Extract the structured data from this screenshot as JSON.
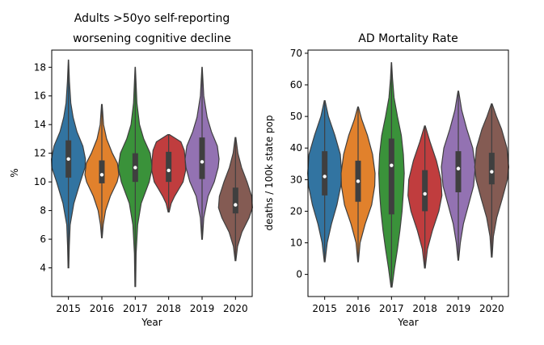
{
  "chart_data": [
    {
      "type": "violin",
      "title": "Adults >50yo self-reporting\nworsening cognitive decline",
      "xlabel": "Year",
      "ylabel": "%",
      "ylim": [
        2.0,
        19.2
      ],
      "yticks": [
        4,
        6,
        8,
        10,
        12,
        14,
        16,
        18
      ],
      "categories": [
        "2015",
        "2016",
        "2017",
        "2018",
        "2019",
        "2020"
      ],
      "colors": [
        "#3274a1",
        "#e1812c",
        "#3a923a",
        "#c03d3e",
        "#9372b2",
        "#845b53"
      ],
      "series": [
        {
          "category": "2015",
          "min": 4.0,
          "max": 18.5,
          "median": 11.6,
          "q1": 10.3,
          "q3": 12.9,
          "profile": [
            [
              4.0,
              0.02
            ],
            [
              5.5,
              0.05
            ],
            [
              7.0,
              0.1
            ],
            [
              8.5,
              0.32
            ],
            [
              10.0,
              0.7
            ],
            [
              11.0,
              0.98
            ],
            [
              11.6,
              1.0
            ],
            [
              12.5,
              0.85
            ],
            [
              13.5,
              0.5
            ],
            [
              14.5,
              0.28
            ],
            [
              15.5,
              0.14
            ],
            [
              17.0,
              0.06
            ],
            [
              18.5,
              0.01
            ]
          ]
        },
        {
          "category": "2016",
          "min": 6.1,
          "max": 15.4,
          "median": 10.5,
          "q1": 9.9,
          "q3": 11.5,
          "profile": [
            [
              6.1,
              0.02
            ],
            [
              7.0,
              0.08
            ],
            [
              8.0,
              0.22
            ],
            [
              9.0,
              0.5
            ],
            [
              10.0,
              0.9
            ],
            [
              10.5,
              1.0
            ],
            [
              11.3,
              0.92
            ],
            [
              12.0,
              0.62
            ],
            [
              13.0,
              0.28
            ],
            [
              14.0,
              0.1
            ],
            [
              15.4,
              0.02
            ]
          ]
        },
        {
          "category": "2017",
          "min": 2.7,
          "max": 18.0,
          "median": 11.0,
          "q1": 10.0,
          "q3": 12.0,
          "profile": [
            [
              2.7,
              0.02
            ],
            [
              5.0,
              0.05
            ],
            [
              7.0,
              0.14
            ],
            [
              8.5,
              0.35
            ],
            [
              10.0,
              0.82
            ],
            [
              11.0,
              1.0
            ],
            [
              12.0,
              0.88
            ],
            [
              13.0,
              0.5
            ],
            [
              14.0,
              0.25
            ],
            [
              15.5,
              0.1
            ],
            [
              18.0,
              0.01
            ]
          ]
        },
        {
          "category": "2018",
          "min": 7.9,
          "max": 13.3,
          "median": 10.8,
          "q1": 10.0,
          "q3": 12.1,
          "profile": [
            [
              7.9,
              0.03
            ],
            [
              8.5,
              0.15
            ],
            [
              9.0,
              0.35
            ],
            [
              9.5,
              0.6
            ],
            [
              10.0,
              0.85
            ],
            [
              10.8,
              1.0
            ],
            [
              11.5,
              0.98
            ],
            [
              12.2,
              0.92
            ],
            [
              12.8,
              0.72
            ],
            [
              13.3,
              0.05
            ]
          ]
        },
        {
          "category": "2019",
          "min": 6.0,
          "max": 18.0,
          "median": 11.4,
          "q1": 10.2,
          "q3": 13.1,
          "profile": [
            [
              6.0,
              0.02
            ],
            [
              7.5,
              0.1
            ],
            [
              9.0,
              0.35
            ],
            [
              10.0,
              0.72
            ],
            [
              11.0,
              0.95
            ],
            [
              11.6,
              1.0
            ],
            [
              12.5,
              0.9
            ],
            [
              13.5,
              0.55
            ],
            [
              14.5,
              0.3
            ],
            [
              16.0,
              0.1
            ],
            [
              18.0,
              0.01
            ]
          ]
        },
        {
          "category": "2020",
          "min": 4.5,
          "max": 13.1,
          "median": 8.4,
          "q1": 7.8,
          "q3": 9.6,
          "profile": [
            [
              4.5,
              0.02
            ],
            [
              5.5,
              0.12
            ],
            [
              6.5,
              0.38
            ],
            [
              7.5,
              0.8
            ],
            [
              8.2,
              1.0
            ],
            [
              9.0,
              0.95
            ],
            [
              10.0,
              0.68
            ],
            [
              11.0,
              0.36
            ],
            [
              12.0,
              0.14
            ],
            [
              13.1,
              0.02
            ]
          ]
        }
      ]
    },
    {
      "type": "violin",
      "title": "AD Mortality Rate",
      "xlabel": "Year",
      "ylabel": "deaths / 100k state pop",
      "ylim": [
        -7,
        71
      ],
      "yticks": [
        0,
        10,
        20,
        30,
        40,
        50,
        60,
        70
      ],
      "categories": [
        "2015",
        "2016",
        "2017",
        "2018",
        "2019",
        "2020"
      ],
      "colors": [
        "#3274a1",
        "#e1812c",
        "#3a923a",
        "#c03d3e",
        "#9372b2",
        "#845b53"
      ],
      "series": [
        {
          "category": "2015",
          "min": 4,
          "max": 55,
          "median": 31,
          "q1": 25,
          "q3": 39,
          "profile": [
            [
              4,
              0.02
            ],
            [
              10,
              0.15
            ],
            [
              16,
              0.4
            ],
            [
              22,
              0.72
            ],
            [
              28,
              0.95
            ],
            [
              32,
              1.0
            ],
            [
              38,
              0.92
            ],
            [
              44,
              0.6
            ],
            [
              50,
              0.22
            ],
            [
              55,
              0.02
            ]
          ]
        },
        {
          "category": "2016",
          "min": 4,
          "max": 53,
          "median": 29.5,
          "q1": 23,
          "q3": 36,
          "profile": [
            [
              4,
              0.02
            ],
            [
              10,
              0.12
            ],
            [
              16,
              0.42
            ],
            [
              22,
              0.8
            ],
            [
              28,
              0.98
            ],
            [
              32,
              1.0
            ],
            [
              38,
              0.85
            ],
            [
              44,
              0.55
            ],
            [
              49,
              0.22
            ],
            [
              53,
              0.02
            ]
          ]
        },
        {
          "category": "2017",
          "min": -4,
          "max": 67,
          "median": 34.5,
          "q1": 19,
          "q3": 43,
          "profile": [
            [
              -4,
              0.03
            ],
            [
              2,
              0.18
            ],
            [
              8,
              0.35
            ],
            [
              14,
              0.5
            ],
            [
              20,
              0.62
            ],
            [
              26,
              0.7
            ],
            [
              32,
              0.75
            ],
            [
              38,
              0.7
            ],
            [
              44,
              0.58
            ],
            [
              50,
              0.35
            ],
            [
              56,
              0.15
            ],
            [
              62,
              0.06
            ],
            [
              67,
              0.01
            ]
          ]
        },
        {
          "category": "2018",
          "min": 2,
          "max": 47,
          "median": 25.5,
          "q1": 20,
          "q3": 33,
          "profile": [
            [
              2,
              0.02
            ],
            [
              8,
              0.15
            ],
            [
              14,
              0.45
            ],
            [
              20,
              0.82
            ],
            [
              25,
              1.0
            ],
            [
              30,
              0.95
            ],
            [
              36,
              0.68
            ],
            [
              42,
              0.3
            ],
            [
              47,
              0.02
            ]
          ]
        },
        {
          "category": "2019",
          "min": 4.5,
          "max": 58,
          "median": 33.5,
          "q1": 26,
          "q3": 39,
          "profile": [
            [
              4.5,
              0.02
            ],
            [
              10,
              0.12
            ],
            [
              16,
              0.3
            ],
            [
              22,
              0.6
            ],
            [
              28,
              0.9
            ],
            [
              34,
              1.0
            ],
            [
              40,
              0.85
            ],
            [
              46,
              0.5
            ],
            [
              52,
              0.2
            ],
            [
              58,
              0.02
            ]
          ]
        },
        {
          "category": "2020",
          "min": 5.5,
          "max": 54,
          "median": 32.5,
          "q1": 28.5,
          "q3": 38.5,
          "profile": [
            [
              5.5,
              0.02
            ],
            [
              12,
              0.1
            ],
            [
              18,
              0.3
            ],
            [
              24,
              0.62
            ],
            [
              30,
              0.92
            ],
            [
              34,
              1.0
            ],
            [
              40,
              0.9
            ],
            [
              46,
              0.58
            ],
            [
              50,
              0.28
            ],
            [
              54,
              0.02
            ]
          ]
        }
      ]
    }
  ]
}
